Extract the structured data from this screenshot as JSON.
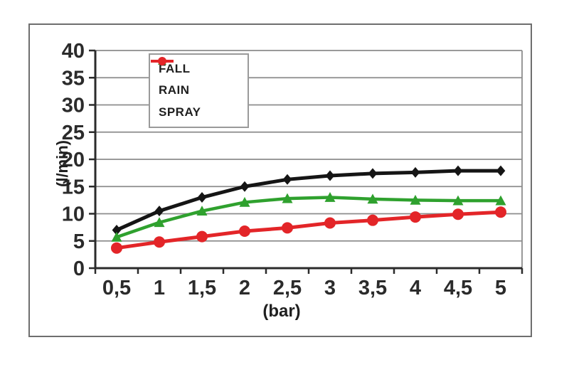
{
  "chart_data": {
    "type": "line",
    "title": "",
    "xlabel": "(bar)",
    "ylabel": "(l/min)",
    "x": [
      0.5,
      1,
      1.5,
      2,
      2.5,
      3,
      3.5,
      4,
      4.5,
      5
    ],
    "x_tick_labels": [
      "0,5",
      "1",
      "1,5",
      "2",
      "2,5",
      "3",
      "3,5",
      "4",
      "4,5",
      "5"
    ],
    "ylim": [
      0,
      40
    ],
    "y_tick_step": 5,
    "y_tick_labels": [
      "0",
      "5",
      "10",
      "15",
      "20",
      "25",
      "30",
      "35",
      "40"
    ],
    "grid": true,
    "legend_position": "top-left-inside",
    "series": [
      {
        "name": "FALL",
        "color": "#151515",
        "marker": "diamond",
        "values": [
          7.0,
          10.5,
          13.0,
          15.0,
          16.3,
          17.0,
          17.4,
          17.6,
          17.9,
          17.9
        ]
      },
      {
        "name": "RAIN",
        "color": "#2fa12e",
        "marker": "triangle",
        "values": [
          5.7,
          8.4,
          10.5,
          12.1,
          12.8,
          13.0,
          12.7,
          12.5,
          12.4,
          12.4
        ]
      },
      {
        "name": "SPRAY",
        "color": "#e32528",
        "marker": "circle",
        "values": [
          3.7,
          4.8,
          5.8,
          6.8,
          7.4,
          8.3,
          8.8,
          9.4,
          9.9,
          10.3
        ]
      }
    ],
    "colors": {
      "gridline": "#8c8c8c",
      "axis": "#2b2b2b",
      "tick_text": "#2b2b2b",
      "frame_border": "#6e6e6e",
      "legend_border": "#9a9a9a",
      "background": "#ffffff"
    }
  }
}
